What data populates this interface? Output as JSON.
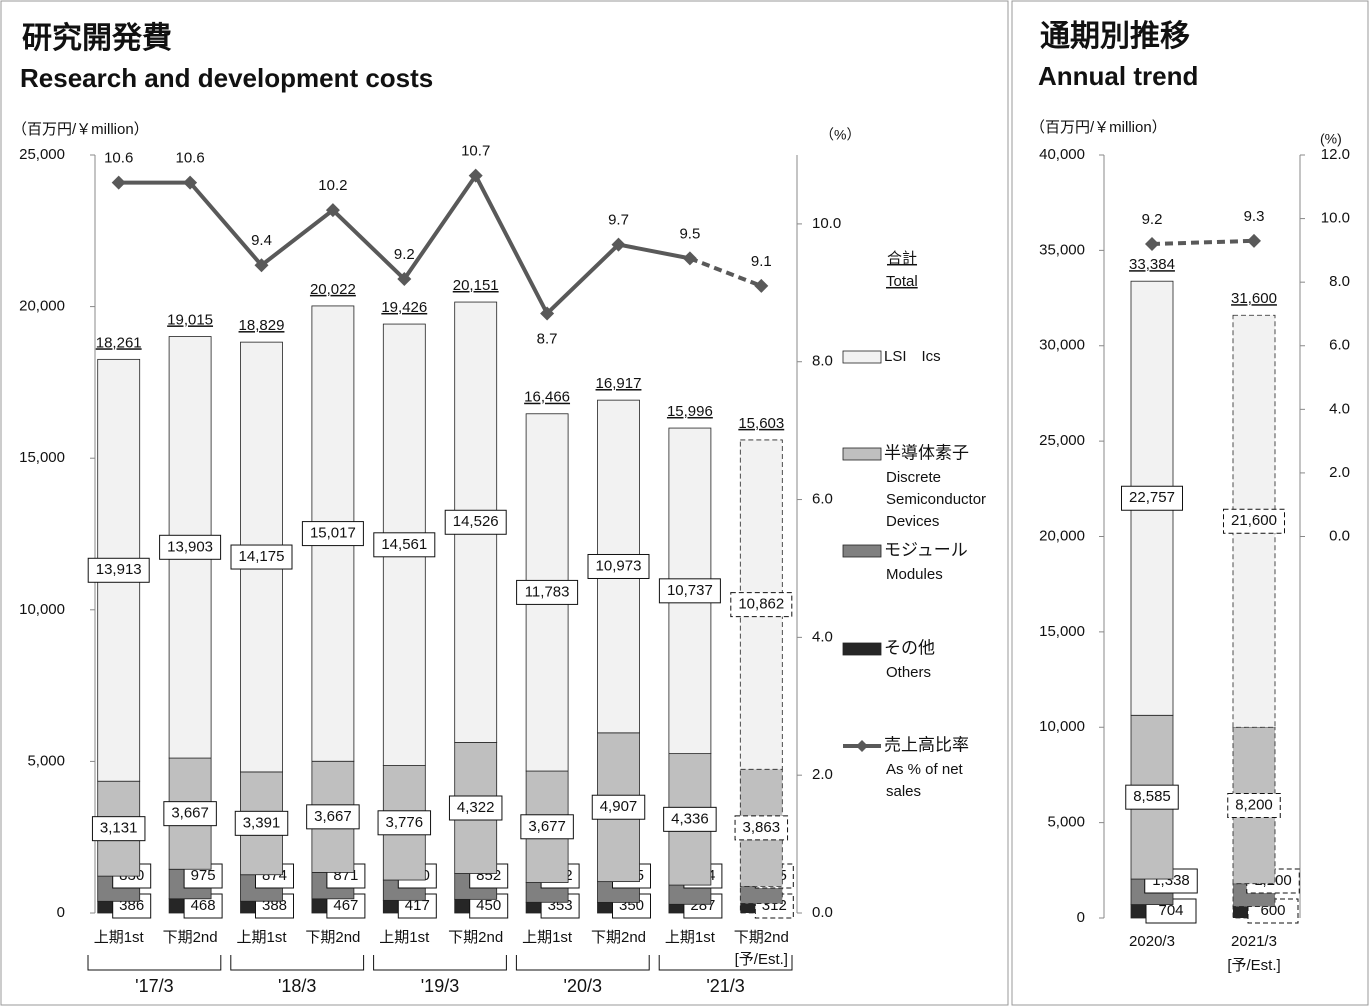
{
  "chart_data": [
    {
      "type": "bar",
      "title": "研究開発費",
      "subtitle": "Research and development costs",
      "y_label": "（百万円/￥million）",
      "y2_label": "（%）",
      "categories": [
        "上期1st",
        "下期2nd",
        "上期1st",
        "下期2nd",
        "上期1st",
        "下期2nd",
        "上期1st",
        "下期2nd",
        "上期1st",
        "下期2nd"
      ],
      "groups": [
        "'17/3",
        "'18/3",
        "'19/3",
        "'20/3",
        "'21/3"
      ],
      "estimated": [
        false,
        false,
        false,
        false,
        false,
        false,
        false,
        false,
        false,
        true
      ],
      "estimate_label": "[予/Est.]",
      "ylim": [
        0,
        25000
      ],
      "yticks": [
        0,
        {
          "value": 5000,
          "label": "5,000"
        },
        {
          "value": 10000,
          "label": "10,000"
        },
        {
          "value": 15000,
          "label": "15,000"
        },
        {
          "value": 20000,
          "label": "20,000"
        },
        {
          "value": 25000,
          "label": "25,000"
        }
      ],
      "y2lim": [
        0,
        11
      ],
      "y2ticks": [
        {
          "value": 0,
          "label": "0.0"
        },
        {
          "value": 2,
          "label": "2.0"
        },
        {
          "value": 4,
          "label": "4.0"
        },
        {
          "value": 6,
          "label": "6.0"
        },
        {
          "value": 8,
          "label": "8.0"
        },
        {
          "value": 10,
          "label": "10.0"
        }
      ],
      "total": {
        "name": "合計",
        "name_en": [
          "Total"
        ],
        "values": [
          18261,
          19015,
          18829,
          20022,
          19426,
          20151,
          16466,
          16917,
          15996,
          15603
        ],
        "value_labels": [
          "18,261",
          "19,015",
          "18,829",
          "20,022",
          "19,426",
          "20,151",
          "16,466",
          "16,917",
          "15,996",
          "15,603"
        ]
      },
      "series": [
        {
          "name": "その他",
          "name_en": [
            "Others"
          ],
          "type": "bar",
          "color": "#262626",
          "values": [
            386,
            468,
            388,
            467,
            417,
            450,
            353,
            350,
            287,
            312
          ]
        },
        {
          "name": "モジュール",
          "name_en": [
            "Modules"
          ],
          "type": "bar",
          "color": "#808080",
          "values": [
            830,
            975,
            874,
            871,
            670,
            852,
            652,
            685,
            634,
            565
          ]
        },
        {
          "name": "半導体素子",
          "name_en": [
            "Discrete",
            "Semiconductor",
            "Devices"
          ],
          "type": "bar",
          "color": "#bfbfbf",
          "values": [
            3131,
            3667,
            3391,
            3667,
            3776,
            4322,
            3677,
            4907,
            4336,
            3863
          ],
          "value_labels": [
            "3,131",
            "3,667",
            "3,391",
            "3,667",
            "3,776",
            "4,322",
            "3,677",
            "4,907",
            "4,336",
            "3,863"
          ]
        },
        {
          "name": "LSI　Ics",
          "type": "bar",
          "color": "#f2f2f2",
          "values": [
            13913,
            13903,
            14175,
            15017,
            14561,
            14526,
            11783,
            10973,
            10737,
            10862
          ],
          "value_labels": [
            "13,913",
            "13,903",
            "14,175",
            "15,017",
            "14,561",
            "14,526",
            "11,783",
            "10,973",
            "10,737",
            "10,862"
          ]
        },
        {
          "name": "売上高比率",
          "name_en": [
            "As % of net",
            "sales"
          ],
          "type": "line",
          "axis": "y2",
          "color": "#595959",
          "values": [
            10.6,
            10.6,
            9.4,
            10.2,
            9.2,
            10.7,
            8.7,
            9.7,
            9.5,
            9.1
          ]
        }
      ]
    },
    {
      "type": "bar",
      "title": "通期別推移",
      "subtitle": "Annual trend",
      "y_label": "（百万円/￥million）",
      "y2_label": "(%)",
      "categories": [
        "2020/3",
        "2021/3"
      ],
      "estimated": [
        false,
        true
      ],
      "estimate_label": "[予/Est.]",
      "ylim": [
        0,
        40000
      ],
      "yticks": [
        0,
        {
          "value": 5000,
          "label": "5,000"
        },
        {
          "value": 10000,
          "label": "10,000"
        },
        {
          "value": 15000,
          "label": "15,000"
        },
        {
          "value": 20000,
          "label": "20,000"
        },
        {
          "value": 25000,
          "label": "25,000"
        },
        {
          "value": 30000,
          "label": "30,000"
        },
        {
          "value": 35000,
          "label": "35,000"
        },
        {
          "value": 40000,
          "label": "40,000"
        }
      ],
      "y2lim": [
        -12,
        12
      ],
      "y2ticks": [
        {
          "value": 0,
          "label": "0.0"
        },
        {
          "value": 2,
          "label": "2.0"
        },
        {
          "value": 4,
          "label": "4.0"
        },
        {
          "value": 6,
          "label": "6.0"
        },
        {
          "value": 8,
          "label": "8.0"
        },
        {
          "value": 10,
          "label": "10.0"
        },
        {
          "value": 12,
          "label": "12.0"
        }
      ],
      "total": {
        "values": [
          33384,
          31600
        ],
        "value_labels": [
          "33,384",
          "31,600"
        ]
      },
      "series": [
        {
          "type": "bar",
          "color": "#262626",
          "values": [
            704,
            600
          ]
        },
        {
          "type": "bar",
          "color": "#808080",
          "values": [
            1338,
            1200
          ],
          "value_labels": [
            "1,338",
            "1,200"
          ]
        },
        {
          "type": "bar",
          "color": "#bfbfbf",
          "values": [
            8585,
            8200
          ],
          "value_labels": [
            "8,585",
            "8,200"
          ]
        },
        {
          "type": "bar",
          "color": "#f2f2f2",
          "values": [
            22757,
            21600
          ],
          "value_labels": [
            "22,757",
            "21,600"
          ]
        },
        {
          "type": "line",
          "axis": "y2",
          "color": "#595959",
          "values": [
            9.2,
            9.3
          ]
        }
      ]
    }
  ]
}
